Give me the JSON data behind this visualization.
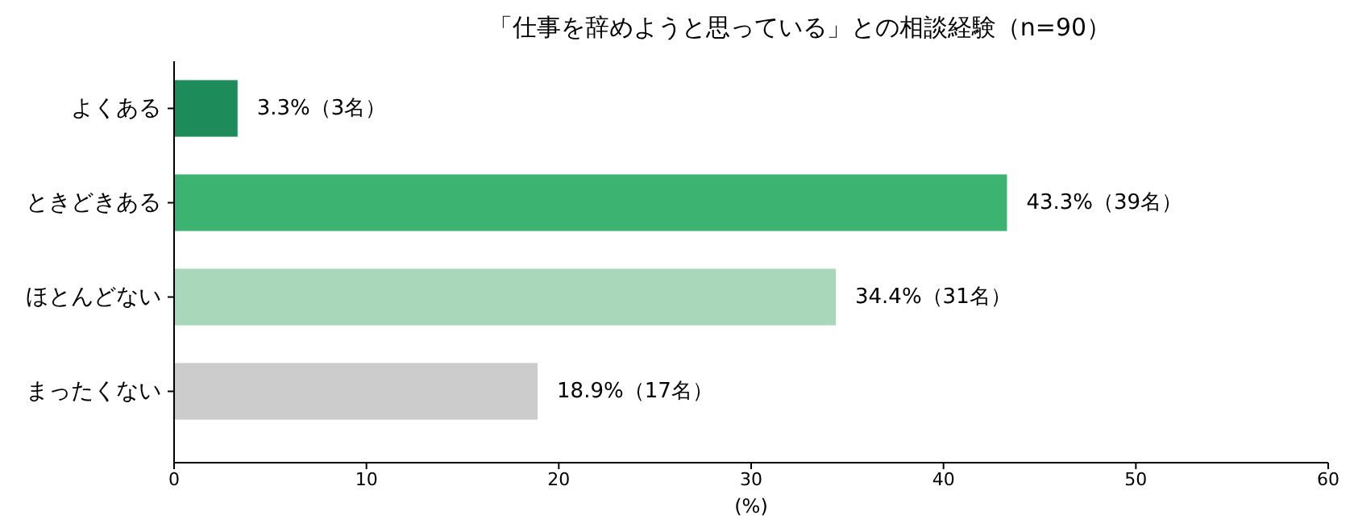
{
  "chart_data": {
    "type": "bar",
    "orientation": "horizontal",
    "title": "「仕事を辞めようと思っている」との相談経験（n=90）",
    "xlabel": "(%)",
    "categories": [
      "よくある",
      "ときどきある",
      "ほとんどない",
      "まったくない"
    ],
    "values": [
      3.3,
      43.3,
      34.4,
      18.9
    ],
    "value_labels": [
      "3.3%（3名）",
      "43.3%（39名）",
      "34.4%（31名）",
      "18.9%（17名）"
    ],
    "colors": [
      "#1e8c5a",
      "#3cb371",
      "#a8d8b9",
      "#cccccc"
    ],
    "xlim": [
      0,
      60
    ],
    "xticks": [
      0,
      10,
      20,
      30,
      40,
      50,
      60
    ],
    "grid": false
  }
}
